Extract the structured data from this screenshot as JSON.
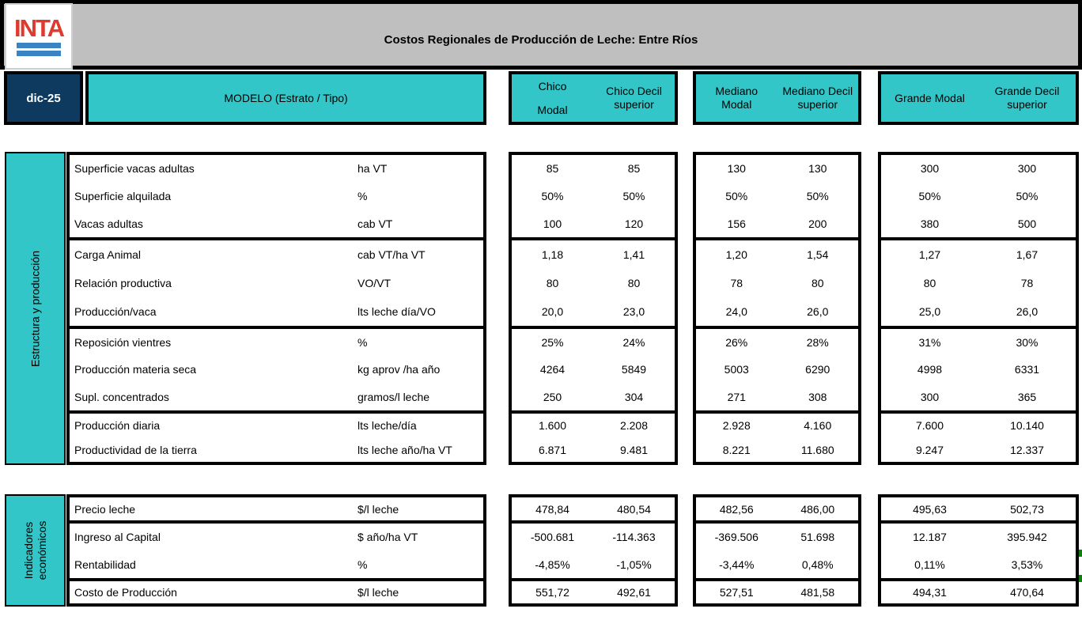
{
  "header": {
    "logo": "INTA",
    "title": "Costos Regionales de Producción de Leche: Entre Ríos",
    "date": "dic-25",
    "model_label": "MODELO (Estrato / Tipo)",
    "column_groups": [
      {
        "name": "Chico",
        "columns": [
          [
            "Chico",
            "Modal"
          ],
          [
            "Chico Decil",
            "superior"
          ]
        ]
      },
      {
        "name": "Mediano",
        "columns": [
          [
            "Mediano",
            "Modal"
          ],
          [
            "Mediano Decil",
            "superior"
          ]
        ]
      },
      {
        "name": "Grande",
        "columns": [
          [
            "Grande Modal"
          ],
          [
            "Grande Decil",
            "superior"
          ]
        ]
      }
    ]
  },
  "sections": [
    {
      "sidebar_label": "Estructura y producción",
      "groups": [
        {
          "rows": [
            {
              "label": "Superficie vacas adultas",
              "unit": "ha VT",
              "values": [
                "85",
                "85",
                "130",
                "130",
                "300",
                "300"
              ]
            },
            {
              "label": "Superficie alquilada",
              "unit": "%",
              "values": [
                "50%",
                "50%",
                "50%",
                "50%",
                "50%",
                "50%"
              ]
            },
            {
              "label": "Vacas adultas",
              "unit": "cab VT",
              "values": [
                "100",
                "120",
                "156",
                "200",
                "380",
                "500"
              ]
            }
          ]
        },
        {
          "rows": [
            {
              "label": "Carga Animal",
              "unit": "cab VT/ha VT",
              "values": [
                "1,18",
                "1,41",
                "1,20",
                "1,54",
                "1,27",
                "1,67"
              ]
            },
            {
              "label": "Relación productiva",
              "unit": "VO/VT",
              "values": [
                "80",
                "80",
                "78",
                "80",
                "80",
                "78"
              ]
            },
            {
              "label": "Producción/vaca",
              "unit": "lts leche día/VO",
              "values": [
                "20,0",
                "23,0",
                "24,0",
                "26,0",
                "25,0",
                "26,0"
              ]
            }
          ]
        },
        {
          "rows": [
            {
              "label": "Reposición vientres",
              "unit": "%",
              "values": [
                "25%",
                "24%",
                "26%",
                "28%",
                "31%",
                "30%"
              ]
            },
            {
              "label": "Producción materia seca",
              "unit": "kg aprov /ha año",
              "values": [
                "4264",
                "5849",
                "5003",
                "6290",
                "4998",
                "6331"
              ]
            },
            {
              "label": "Supl. concentrados",
              "unit": "gramos/l leche",
              "values": [
                "250",
                "304",
                "271",
                "308",
                "300",
                "365"
              ]
            }
          ]
        },
        {
          "rows": [
            {
              "label": "Producción diaria",
              "unit": "lts leche/día",
              "values": [
                "1.600",
                "2.208",
                "2.928",
                "4.160",
                "7.600",
                "10.140"
              ]
            },
            {
              "label": "Productividad de la tierra",
              "unit": "lts leche año/ha VT",
              "values": [
                "6.871",
                "9.481",
                "8.221",
                "11.680",
                "9.247",
                "12.337"
              ]
            }
          ]
        }
      ]
    },
    {
      "sidebar_label": "Indicadores económicos",
      "groups": [
        {
          "rows": [
            {
              "label": "Precio leche",
              "unit": "$/l leche",
              "values": [
                "478,84",
                "480,54",
                "482,56",
                "486,00",
                "495,63",
                "502,73"
              ]
            }
          ]
        },
        {
          "rows": [
            {
              "label": "Ingreso al Capital",
              "unit": "$ año/ha VT",
              "values": [
                "-500.681",
                "-114.363",
                "-369.506",
                "51.698",
                "12.187",
                "395.942"
              ]
            },
            {
              "label": "Rentabilidad",
              "unit": "%",
              "values": [
                "-4,85%",
                "-1,05%",
                "-3,44%",
                "0,48%",
                "0,11%",
                "3,53%"
              ]
            }
          ]
        },
        {
          "rows": [
            {
              "label": "Costo de Producción",
              "unit": "$/l leche",
              "values": [
                "551,72",
                "492,61",
                "527,51",
                "481,58",
                "494,31",
                "470,64"
              ]
            }
          ]
        }
      ]
    }
  ],
  "colors": {
    "teal": "#32c6c8",
    "navy": "#0d3a5e",
    "gray": "#bfbfbf",
    "logo_red": "#de3a2d",
    "logo_blue": "#3b84c4",
    "marker_green": "#0c800c"
  }
}
